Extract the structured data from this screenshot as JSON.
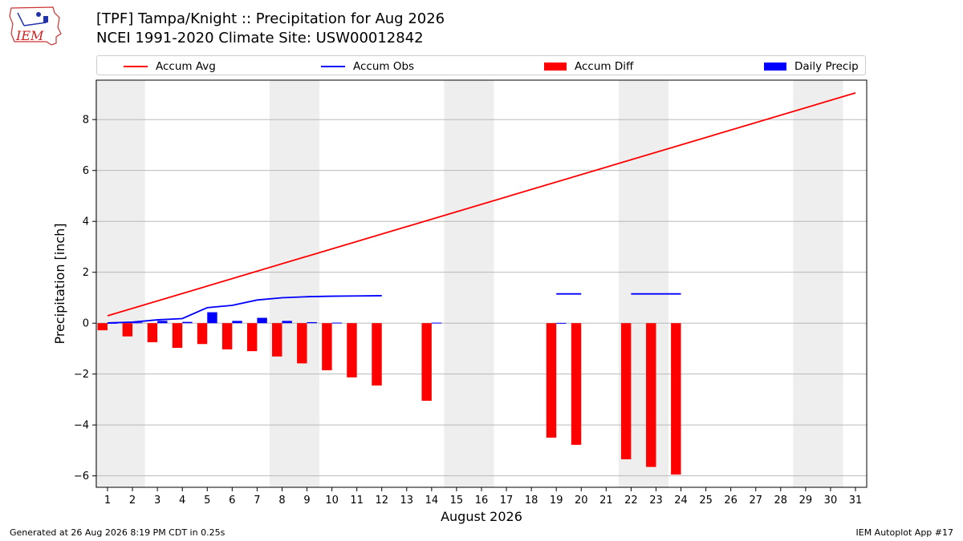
{
  "header": {
    "title_line1": "[TPF] Tampa/Knight :: Precipitation for Aug 2026",
    "title_line2": "NCEI 1991-2020 Climate Site: USW00012842",
    "logo_text": "IEM"
  },
  "footer": {
    "left": "Generated at 26 Aug 2026 8:19 PM CDT in 0.25s",
    "right": "IEM Autoplot App #17"
  },
  "colors": {
    "accum_avg": "#ff0000",
    "accum_obs": "#0000ff",
    "accum_diff": "#ff0000",
    "daily_precip": "#0000ff",
    "weekend_shade": "#eeeeee",
    "grid": "#b0b0b0"
  },
  "chart_data": {
    "type": "bar",
    "xlabel": "August 2026",
    "ylabel": "Precipitation [inch]",
    "xlim": [
      0.55,
      31.45
    ],
    "ylim": [
      -6.45,
      9.55
    ],
    "yticks": [
      -6,
      -4,
      -2,
      0,
      2,
      4,
      6,
      8
    ],
    "yticklabels": [
      "−6",
      "−4",
      "−2",
      "0",
      "2",
      "4",
      "6",
      "8"
    ],
    "xticks": [
      "1",
      "2",
      "3",
      "4",
      "5",
      "6",
      "7",
      "8",
      "9",
      "10",
      "11",
      "12",
      "13",
      "14",
      "15",
      "16",
      "17",
      "18",
      "19",
      "20",
      "21",
      "22",
      "23",
      "24",
      "25",
      "26",
      "27",
      "28",
      "29",
      "30",
      "31"
    ],
    "grid": "horizontal",
    "legend_position": "top",
    "weekend_spans": [
      [
        0.5,
        2.5
      ],
      [
        7.5,
        9.5
      ],
      [
        14.5,
        16.5
      ],
      [
        21.5,
        23.5
      ],
      [
        28.5,
        30.5
      ]
    ],
    "legend": [
      {
        "label": "Accum Avg",
        "kind": "line",
        "color": "#ff0000"
      },
      {
        "label": "Accum Obs",
        "kind": "line",
        "color": "#0000ff"
      },
      {
        "label": "Accum Diff",
        "kind": "patch",
        "color": "#ff0000"
      },
      {
        "label": "Daily Precip",
        "kind": "patch",
        "color": "#0000ff"
      }
    ],
    "series": [
      {
        "name": "Accum Avg",
        "type": "line",
        "x": [
          1,
          31
        ],
        "y": [
          0.29,
          9.05
        ]
      },
      {
        "name": "Accum Obs",
        "type": "line",
        "segments": [
          {
            "x": [
              1,
              2,
              3,
              4,
              5,
              6,
              7,
              8,
              9,
              10,
              11,
              12
            ],
            "y": [
              0.01,
              0.04,
              0.13,
              0.18,
              0.61,
              0.7,
              0.91,
              1.0,
              1.04,
              1.06,
              1.07,
              1.08
            ]
          },
          {
            "x": [
              19,
              20
            ],
            "y": [
              1.15,
              1.15
            ]
          },
          {
            "x": [
              22,
              23,
              24
            ],
            "y": [
              1.15,
              1.15,
              1.15
            ]
          }
        ]
      },
      {
        "name": "Accum Diff",
        "type": "bar",
        "x": [
          1,
          2,
          3,
          4,
          5,
          6,
          7,
          8,
          9,
          10,
          11,
          12,
          14,
          19,
          20,
          22,
          23,
          24
        ],
        "y": [
          -0.28,
          -0.52,
          -0.75,
          -0.97,
          -0.82,
          -1.03,
          -1.1,
          -1.31,
          -1.58,
          -1.85,
          -2.13,
          -2.45,
          -3.05,
          -4.5,
          -4.78,
          -5.35,
          -5.65,
          -5.95
        ]
      },
      {
        "name": "Daily Precip",
        "type": "bar",
        "x": [
          1,
          2,
          3,
          4,
          5,
          6,
          7,
          8,
          9,
          10,
          14,
          19
        ],
        "y": [
          0.01,
          0.03,
          0.09,
          0.05,
          0.43,
          0.09,
          0.21,
          0.09,
          0.04,
          0.02,
          0.02,
          0.01
        ]
      }
    ]
  }
}
